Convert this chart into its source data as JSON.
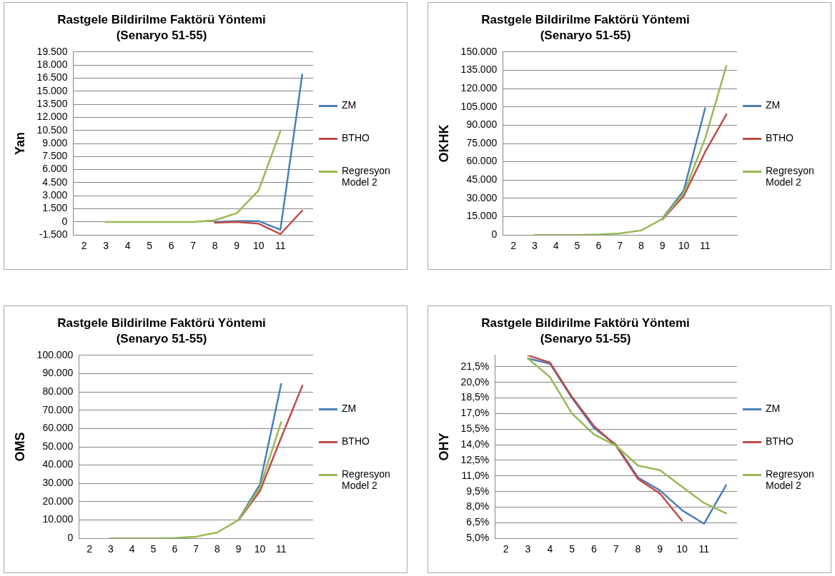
{
  "chart_data": [
    {
      "type": "line",
      "title": "Rastgele Bildirilme Faktörü Yöntemi",
      "subtitle": "(Senaryo 51-55)",
      "ylabel": "Yan",
      "categories": [
        "2",
        "3",
        "4",
        "5",
        "6",
        "7",
        "8",
        "9",
        "10",
        "11",
        null
      ],
      "series": [
        {
          "name": "ZM",
          "color": "#4a7ebb",
          "values": [
            null,
            null,
            null,
            null,
            null,
            null,
            0,
            100,
            100,
            -900,
            16900
          ]
        },
        {
          "name": "BTHO",
          "color": "#be4b48",
          "values": [
            null,
            null,
            null,
            null,
            null,
            null,
            -100,
            0,
            -200,
            -1400,
            1300
          ]
        },
        {
          "name": "Regresyon Model 2",
          "color": "#98b954",
          "values": [
            null,
            0,
            0,
            0,
            0,
            0,
            200,
            1000,
            3600,
            10400,
            null
          ]
        }
      ],
      "ylim": [
        -1500,
        19500
      ],
      "yticks": [
        {
          "value": -1500,
          "label": "-1.500"
        },
        {
          "value": 0,
          "label": "0"
        },
        {
          "value": 1500,
          "label": "1.500"
        },
        {
          "value": 3000,
          "label": "3.000"
        },
        {
          "value": 4500,
          "label": "4.500"
        },
        {
          "value": 6000,
          "label": "6.000"
        },
        {
          "value": 7500,
          "label": "7.500"
        },
        {
          "value": 9000,
          "label": "9.000"
        },
        {
          "value": 10500,
          "label": "10.500"
        },
        {
          "value": 12000,
          "label": "12.000"
        },
        {
          "value": 13500,
          "label": "13.500"
        },
        {
          "value": 15000,
          "label": "15.000"
        },
        {
          "value": 16500,
          "label": "16.500"
        },
        {
          "value": 18000,
          "label": "18.000"
        },
        {
          "value": 19500,
          "label": "19.500"
        }
      ],
      "grid": "y",
      "legend": "right",
      "marker": "none",
      "line_style": "solid"
    },
    {
      "type": "line",
      "title": "Rastgele Bildirilme Faktörü Yöntemi",
      "subtitle": "(Senaryo 51-55)",
      "ylabel": "OKHK",
      "categories": [
        "2",
        "3",
        "4",
        "5",
        "6",
        "7",
        "8",
        "9",
        "10",
        "11",
        null
      ],
      "series": [
        {
          "name": "ZM",
          "color": "#4a7ebb",
          "values": [
            null,
            null,
            null,
            null,
            null,
            null,
            null,
            13600,
            36600,
            103800,
            null
          ]
        },
        {
          "name": "BTHO",
          "color": "#be4b48",
          "values": [
            null,
            null,
            null,
            null,
            null,
            null,
            null,
            12800,
            32000,
            68000,
            98800
          ]
        },
        {
          "name": "Regresyon Model 2",
          "color": "#98b954",
          "values": [
            null,
            0,
            0,
            0,
            400,
            1300,
            3700,
            13200,
            34200,
            79000,
            138500
          ]
        }
      ],
      "ylim": [
        0,
        150000
      ],
      "yticks": [
        {
          "value": 0,
          "label": "0"
        },
        {
          "value": 15000,
          "label": "15.000"
        },
        {
          "value": 30000,
          "label": "30.000"
        },
        {
          "value": 45000,
          "label": "45.000"
        },
        {
          "value": 60000,
          "label": "60.000"
        },
        {
          "value": 75000,
          "label": "75.000"
        },
        {
          "value": 90000,
          "label": "90.000"
        },
        {
          "value": 105000,
          "label": "105.000"
        },
        {
          "value": 120000,
          "label": "120.000"
        },
        {
          "value": 135000,
          "label": "135.000"
        },
        {
          "value": 150000,
          "label": "150.000"
        }
      ],
      "grid": "y",
      "legend": "right",
      "marker": "none",
      "line_style": "solid"
    },
    {
      "type": "line",
      "title": "Rastgele Bildirilme Faktörü Yöntemi",
      "subtitle": "(Senaryo 51-55)",
      "ylabel": "OMS",
      "categories": [
        "2",
        "3",
        "4",
        "5",
        "6",
        "7",
        "8",
        "9",
        "10",
        "11",
        null
      ],
      "series": [
        {
          "name": "ZM",
          "color": "#4a7ebb",
          "values": [
            null,
            null,
            null,
            null,
            null,
            null,
            null,
            10300,
            29400,
            84300,
            null
          ]
        },
        {
          "name": "BTHO",
          "color": "#be4b48",
          "values": [
            null,
            null,
            null,
            null,
            null,
            null,
            null,
            9900,
            25700,
            55000,
            83500
          ]
        },
        {
          "name": "Regresyon Model 2",
          "color": "#98b954",
          "values": [
            null,
            0,
            0,
            0,
            200,
            900,
            3200,
            10100,
            27600,
            63500,
            null
          ]
        }
      ],
      "ylim": [
        0,
        100000
      ],
      "yticks": [
        {
          "value": 0,
          "label": "0"
        },
        {
          "value": 10000,
          "label": "10.000"
        },
        {
          "value": 20000,
          "label": "20.000"
        },
        {
          "value": 30000,
          "label": "30.000"
        },
        {
          "value": 40000,
          "label": "40.000"
        },
        {
          "value": 50000,
          "label": "50.000"
        },
        {
          "value": 60000,
          "label": "60.000"
        },
        {
          "value": 70000,
          "label": "70.000"
        },
        {
          "value": 80000,
          "label": "80.000"
        },
        {
          "value": 90000,
          "label": "90.000"
        },
        {
          "value": 100000,
          "label": "100.000"
        }
      ],
      "grid": "y",
      "legend": "right",
      "marker": "none",
      "line_style": "solid"
    },
    {
      "type": "line",
      "title": "Rastgele Bildirilme Faktörü Yöntemi",
      "subtitle": "(Senaryo 51-55)",
      "ylabel": "OHY",
      "categories": [
        "2",
        "3",
        "4",
        "5",
        "6",
        "7",
        "8",
        "9",
        "10",
        "11",
        null
      ],
      "series": [
        {
          "name": "ZM",
          "color": "#4a7ebb",
          "values": [
            null,
            22.3,
            21.8,
            18.5,
            15.6,
            14.0,
            10.85,
            9.6,
            7.7,
            6.4,
            10.1
          ]
        },
        {
          "name": "BTHO",
          "color": "#be4b48",
          "values": [
            null,
            22.6,
            21.9,
            18.6,
            15.8,
            13.9,
            10.7,
            9.3,
            6.7,
            null,
            null
          ]
        },
        {
          "name": "Regresyon Model 2",
          "color": "#98b954",
          "values": [
            null,
            22.3,
            20.5,
            17.0,
            15.0,
            13.9,
            12.0,
            11.55,
            9.95,
            8.4,
            7.4
          ]
        }
      ],
      "ylim": [
        5,
        22.6
      ],
      "yticks": [
        {
          "value": 5,
          "label": "5,0%"
        },
        {
          "value": 6.5,
          "label": "6,5%"
        },
        {
          "value": 8,
          "label": "8,0%"
        },
        {
          "value": 9.5,
          "label": "9,5%"
        },
        {
          "value": 11,
          "label": "11,0%"
        },
        {
          "value": 12.5,
          "label": "12,5%"
        },
        {
          "value": 14,
          "label": "14,0%"
        },
        {
          "value": 15.5,
          "label": "15,5%"
        },
        {
          "value": 17,
          "label": "17,0%"
        },
        {
          "value": 18.5,
          "label": "18,5%"
        },
        {
          "value": 20,
          "label": "20,0%"
        },
        {
          "value": 21.5,
          "label": "21,5%"
        }
      ],
      "grid": "y",
      "legend": "right",
      "marker": "none",
      "line_style": "solid"
    }
  ]
}
